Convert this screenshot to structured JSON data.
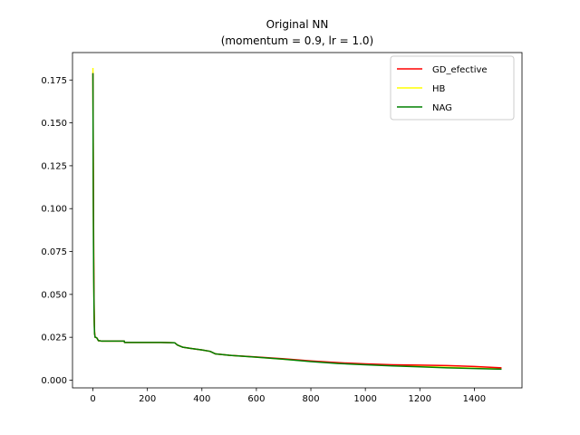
{
  "chart_data": {
    "type": "line",
    "title": "Original NN",
    "subtitle": "(momentum = 0.9, lr = 1.0)",
    "xlabel": "",
    "ylabel": "",
    "xlim": [
      -75,
      1575
    ],
    "ylim": [
      -0.0045,
      0.191
    ],
    "xticks": [
      0,
      200,
      400,
      600,
      800,
      1000,
      1200,
      1400
    ],
    "xtick_labels": [
      "0",
      "200",
      "400",
      "600",
      "800",
      "1000",
      "1200",
      "1400"
    ],
    "yticks": [
      0.0,
      0.025,
      0.05,
      0.075,
      0.1,
      0.125,
      0.15,
      0.175
    ],
    "ytick_labels": [
      "0.000",
      "0.025",
      "0.050",
      "0.075",
      "0.100",
      "0.125",
      "0.150",
      "0.175"
    ],
    "grid": false,
    "legend_position": "top-right",
    "series": [
      {
        "name": "GD_efective",
        "color": "#ff0000",
        "x": [
          0,
          1,
          2,
          3,
          4,
          5,
          6,
          8,
          10,
          15,
          20,
          25,
          30,
          50,
          80,
          115,
          116,
          150,
          200,
          250,
          300,
          310,
          330,
          360,
          400,
          430,
          450,
          500,
          600,
          700,
          800,
          900,
          1000,
          1100,
          1200,
          1300,
          1400,
          1500
        ],
        "values": [
          0.179,
          0.14,
          0.1,
          0.07,
          0.048,
          0.035,
          0.028,
          0.025,
          0.025,
          0.0245,
          0.023,
          0.023,
          0.0228,
          0.0228,
          0.0228,
          0.0228,
          0.022,
          0.022,
          0.022,
          0.022,
          0.0218,
          0.0205,
          0.0192,
          0.0185,
          0.0176,
          0.0168,
          0.0153,
          0.0145,
          0.0135,
          0.0125,
          0.0112,
          0.0102,
          0.0095,
          0.009,
          0.0088,
          0.0085,
          0.008,
          0.0072
        ]
      },
      {
        "name": "HB",
        "color": "#ffff00",
        "x": [
          0,
          1,
          2,
          3,
          4,
          5,
          6,
          8,
          10,
          15,
          20,
          25,
          30,
          50,
          80,
          115,
          116,
          150,
          200,
          250,
          300,
          310,
          330,
          360,
          400,
          430,
          450,
          500,
          600,
          700,
          800,
          900,
          1000,
          1100,
          1200,
          1300,
          1400,
          1500
        ],
        "values": [
          0.182,
          0.13,
          0.09,
          0.065,
          0.045,
          0.034,
          0.028,
          0.025,
          0.025,
          0.0245,
          0.023,
          0.023,
          0.0228,
          0.0228,
          0.0228,
          0.0228,
          0.022,
          0.022,
          0.022,
          0.022,
          0.0218,
          0.0205,
          0.0192,
          0.0185,
          0.0176,
          0.0168,
          0.0153,
          0.0145,
          0.0134,
          0.0122,
          0.011,
          0.0099,
          0.0092,
          0.0086,
          0.008,
          0.0075,
          0.007,
          0.0065
        ]
      },
      {
        "name": "NAG",
        "color": "#008000",
        "x": [
          0,
          1,
          2,
          3,
          4,
          5,
          6,
          8,
          10,
          15,
          20,
          25,
          30,
          50,
          80,
          115,
          116,
          150,
          200,
          250,
          300,
          310,
          330,
          360,
          400,
          430,
          450,
          500,
          600,
          700,
          800,
          900,
          1000,
          1100,
          1200,
          1300,
          1400,
          1500
        ],
        "values": [
          0.179,
          0.12,
          0.08,
          0.058,
          0.042,
          0.032,
          0.027,
          0.025,
          0.025,
          0.0245,
          0.023,
          0.023,
          0.0228,
          0.0228,
          0.0228,
          0.0228,
          0.022,
          0.022,
          0.022,
          0.022,
          0.0218,
          0.0205,
          0.0192,
          0.0185,
          0.0176,
          0.0168,
          0.0153,
          0.0145,
          0.0134,
          0.0122,
          0.0108,
          0.0097,
          0.009,
          0.0083,
          0.0078,
          0.0072,
          0.0068,
          0.0064
        ]
      }
    ]
  }
}
